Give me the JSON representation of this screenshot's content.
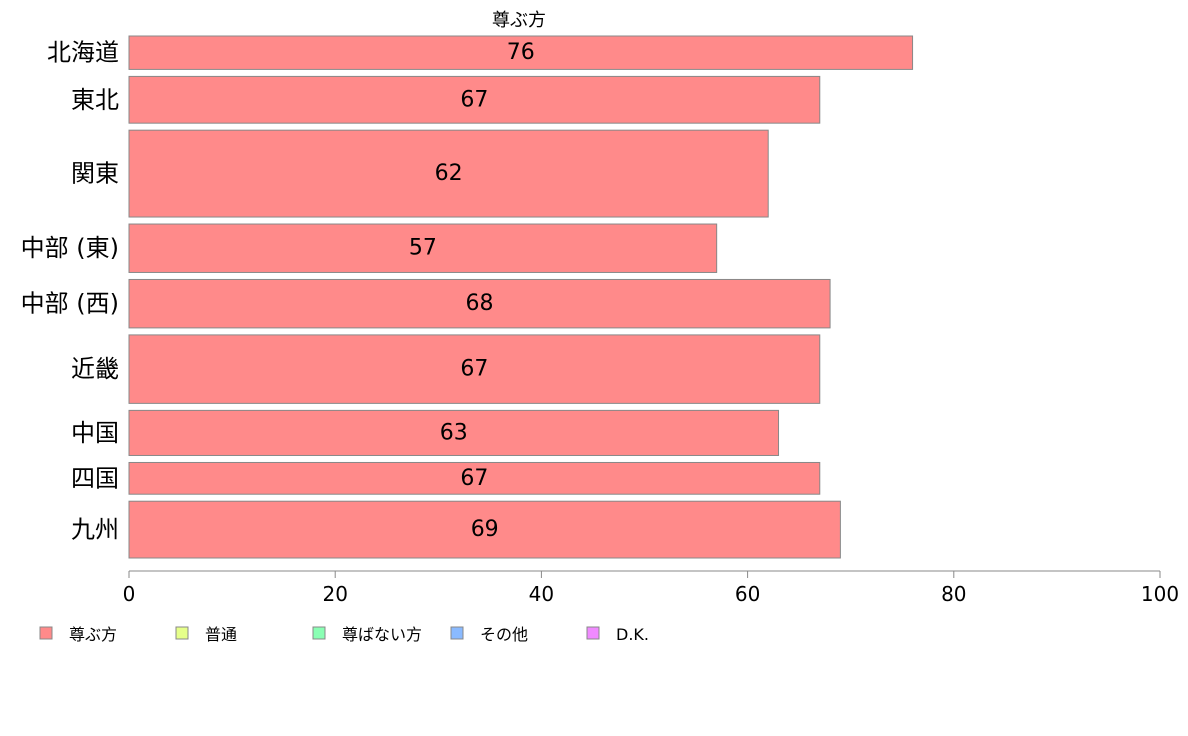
{
  "chart_data": {
    "type": "bar",
    "orientation": "horizontal",
    "title": "尊ぶ方",
    "categories": [
      "北海道",
      "東北",
      "関東",
      "中部 (東)",
      "中部 (西)",
      "近畿",
      "中国",
      "四国",
      "九州"
    ],
    "values": [
      76,
      67,
      62,
      57,
      68,
      67,
      63,
      67,
      69
    ],
    "value_labels": [
      "76",
      "67",
      "62",
      "57",
      "68",
      "67",
      "63",
      "67",
      "69"
    ],
    "bar_weights": [
      1.0,
      1.4,
      2.6,
      1.45,
      1.45,
      2.05,
      1.35,
      0.95,
      1.7
    ],
    "xlim": [
      0,
      100
    ],
    "x_ticks": [
      "0",
      "20",
      "40",
      "60",
      "80",
      "100"
    ],
    "xlabel": "",
    "ylabel": "",
    "grid": false,
    "bar_color": "#ff8a8a",
    "bar_edge_color": "#888888",
    "legend": {
      "position": "bottom-left",
      "items": [
        {
          "label": "尊ぶ方",
          "color": "#ff8a8a"
        },
        {
          "label": "普通",
          "color": "#e6ff8a"
        },
        {
          "label": "尊ばない方",
          "color": "#8affb4"
        },
        {
          "label": "その他",
          "color": "#8abaff"
        },
        {
          "label": "D.K.",
          "color": "#f08aff"
        }
      ]
    }
  }
}
